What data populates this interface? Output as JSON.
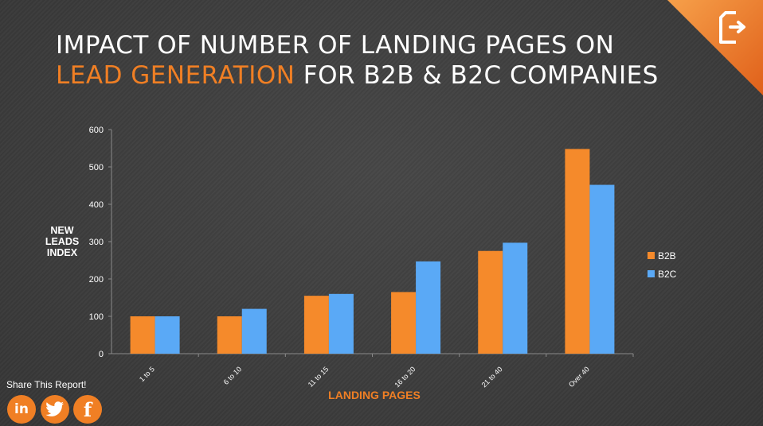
{
  "title": {
    "line1": "IMPACT OF NUMBER OF LANDING PAGES ON",
    "line2_accent": "LEAD GENERATION",
    "line2_rest": " FOR B2B & B2C COMPANIES"
  },
  "share": {
    "label": "Share This Report!",
    "linkedin": "in",
    "facebook": "f"
  },
  "colors": {
    "accent": "#f07f24",
    "b2b": "#f58a2b",
    "b2c": "#5aa9f6"
  },
  "chart_data": {
    "type": "bar",
    "categories": [
      "1 to 5",
      "6 to 10",
      "11 to 15",
      "16 to 20",
      "21 to 40",
      "Over 40"
    ],
    "series": [
      {
        "name": "B2B",
        "values": [
          100,
          100,
          155,
          165,
          275,
          548
        ]
      },
      {
        "name": "B2C",
        "values": [
          100,
          120,
          160,
          247,
          297,
          452
        ]
      }
    ],
    "ylim": [
      0,
      600
    ],
    "yticks": [
      0,
      100,
      200,
      300,
      400,
      500,
      600
    ],
    "xlabel": "LANDING PAGES",
    "ylabel": "NEW LEADS INDEX",
    "legend": "right",
    "grid": false
  }
}
